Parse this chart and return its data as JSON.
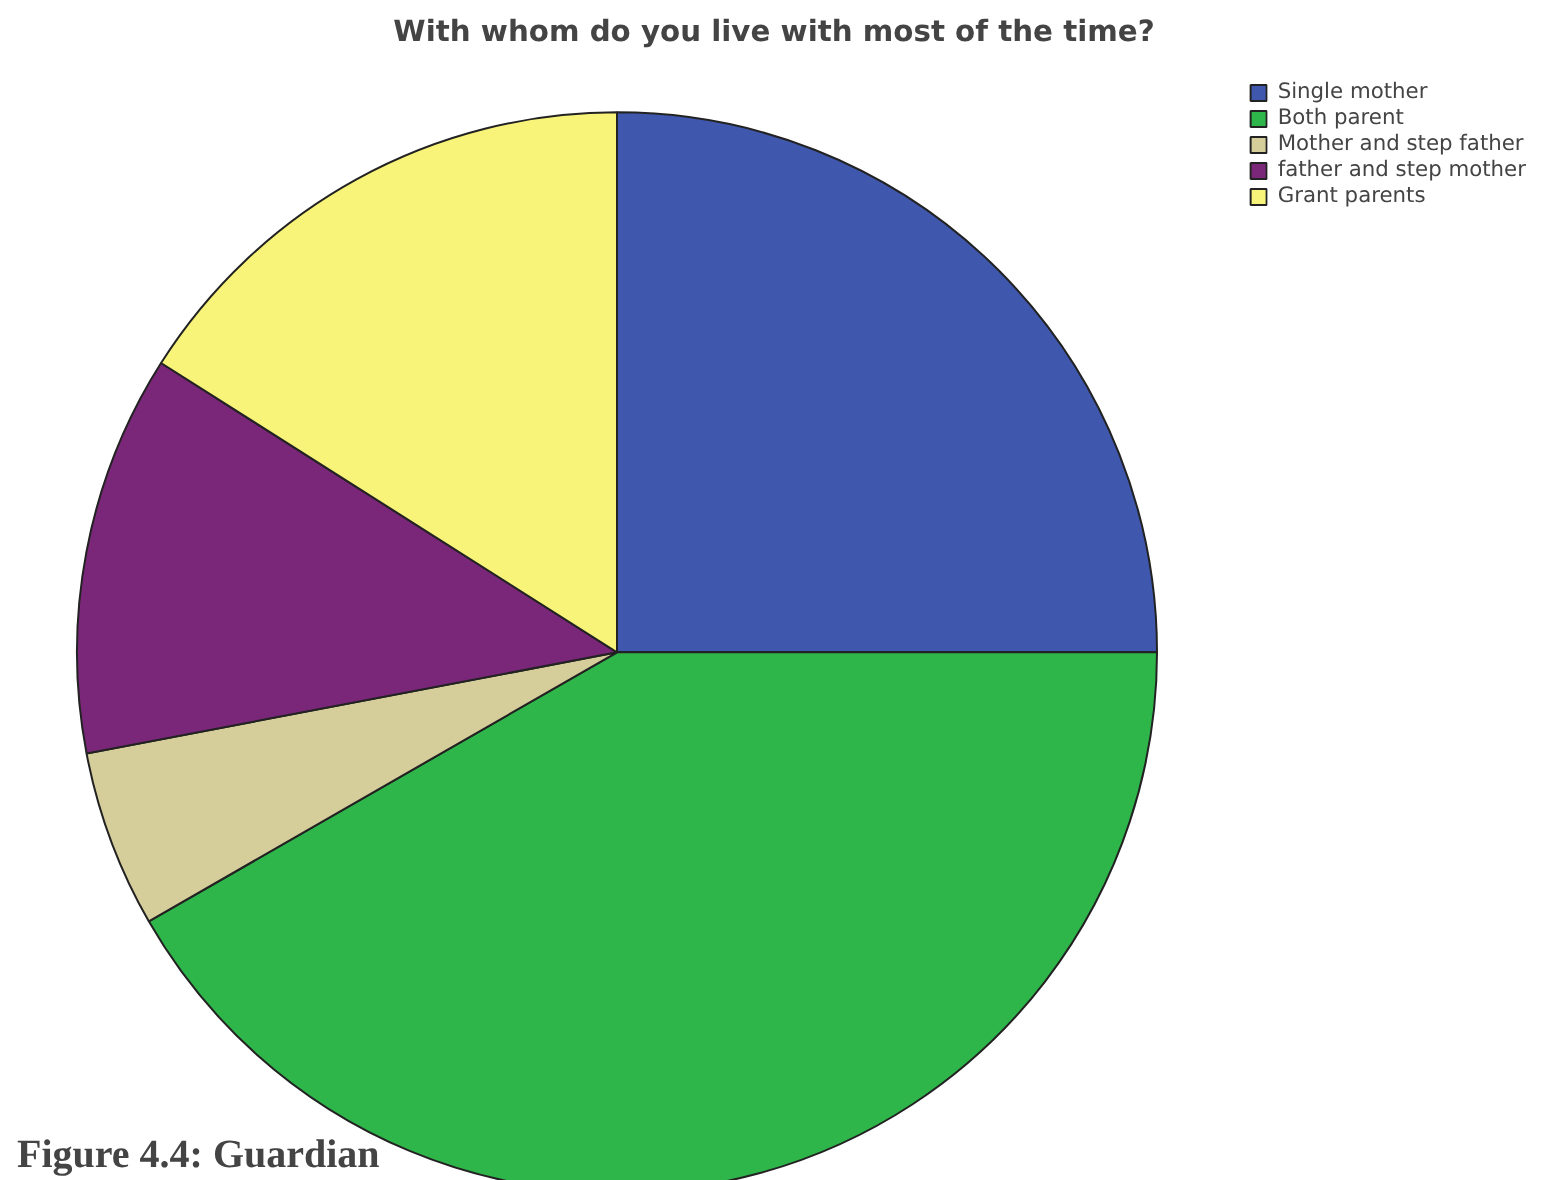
{
  "chart_data": {
    "type": "pie",
    "title": "With whom do you live with most of the time?",
    "categories": [
      "Single mother",
      "Both parent",
      "Mother and step father",
      "father and step mother",
      "Grant parents"
    ],
    "values": [
      25,
      41.7,
      5.3,
      12,
      16
    ],
    "colors": [
      "#3f58ad",
      "#2fb64a",
      "#d5cd9a",
      "#7b2779",
      "#f8f47a"
    ],
    "legend": "top right",
    "annotations": [
      "Figure 4.4: Guardian"
    ]
  }
}
